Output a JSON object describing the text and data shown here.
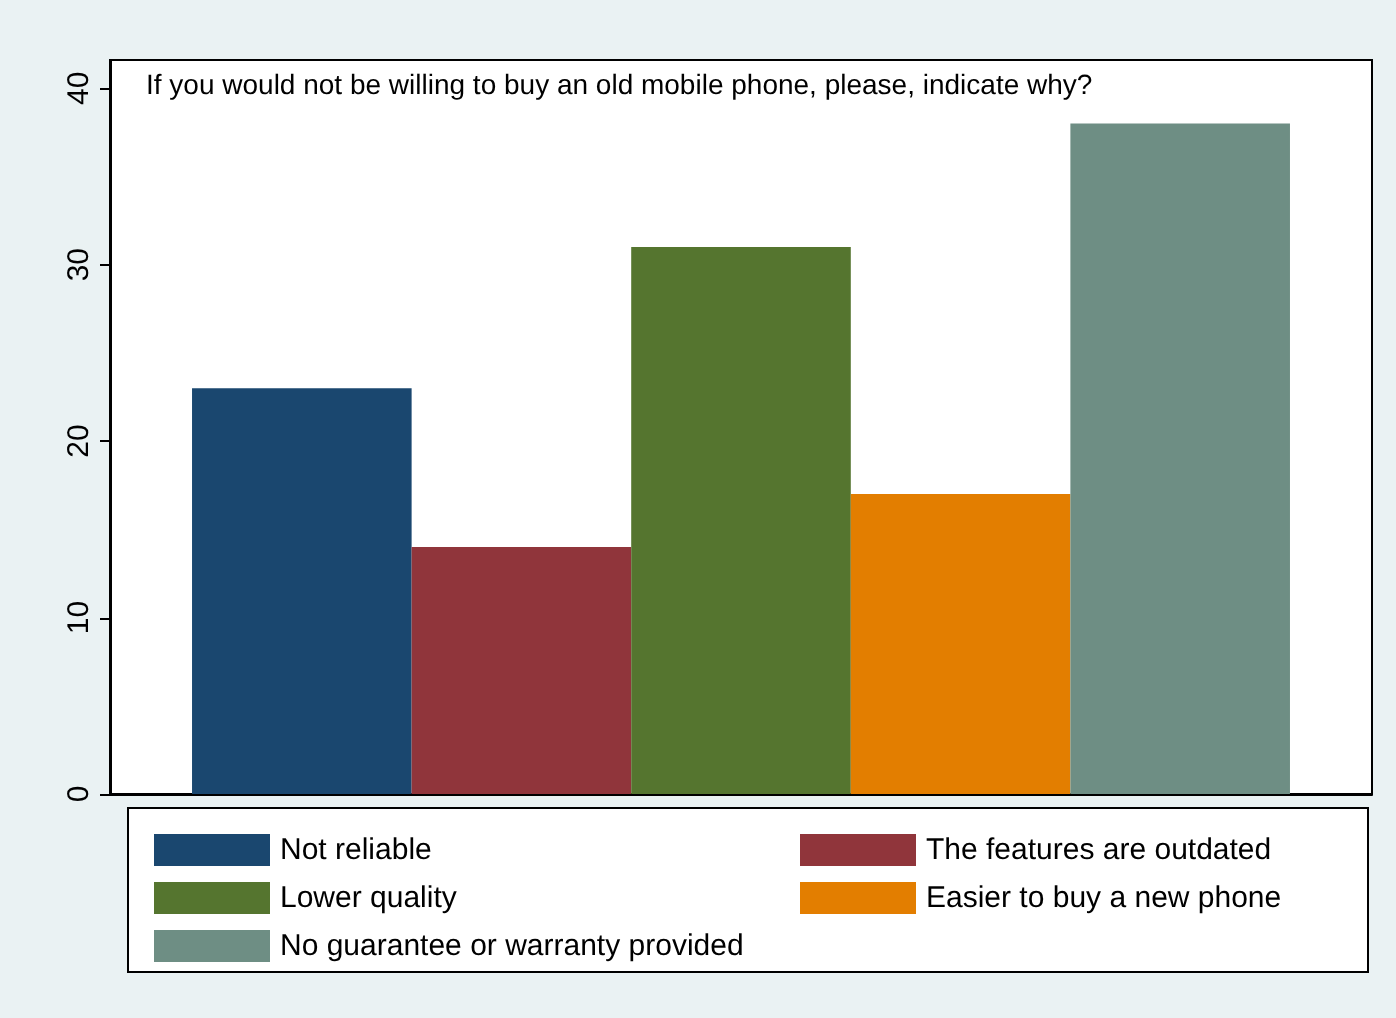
{
  "chart_data": {
    "type": "bar",
    "title": "If you would not be willing to buy an old mobile phone, please, indicate why?",
    "categories": [
      null
    ],
    "series": [
      {
        "name": "Not reliable",
        "color": "#1a476f",
        "values": [
          23
        ]
      },
      {
        "name": "The features are outdated",
        "color": "#90353b",
        "values": [
          14
        ]
      },
      {
        "name": "Lower quality",
        "color": "#55752f",
        "values": [
          31
        ]
      },
      {
        "name": "Easier to buy a new phone",
        "color": "#e37e00",
        "values": [
          17
        ]
      },
      {
        "name": "No guarantee or warranty provided",
        "color": "#6e8e84",
        "values": [
          38
        ]
      }
    ],
    "ylim": [
      0,
      41.6
    ],
    "yticks": [
      0,
      10,
      20,
      30,
      40
    ],
    "grid": false,
    "legend": "bottom"
  }
}
